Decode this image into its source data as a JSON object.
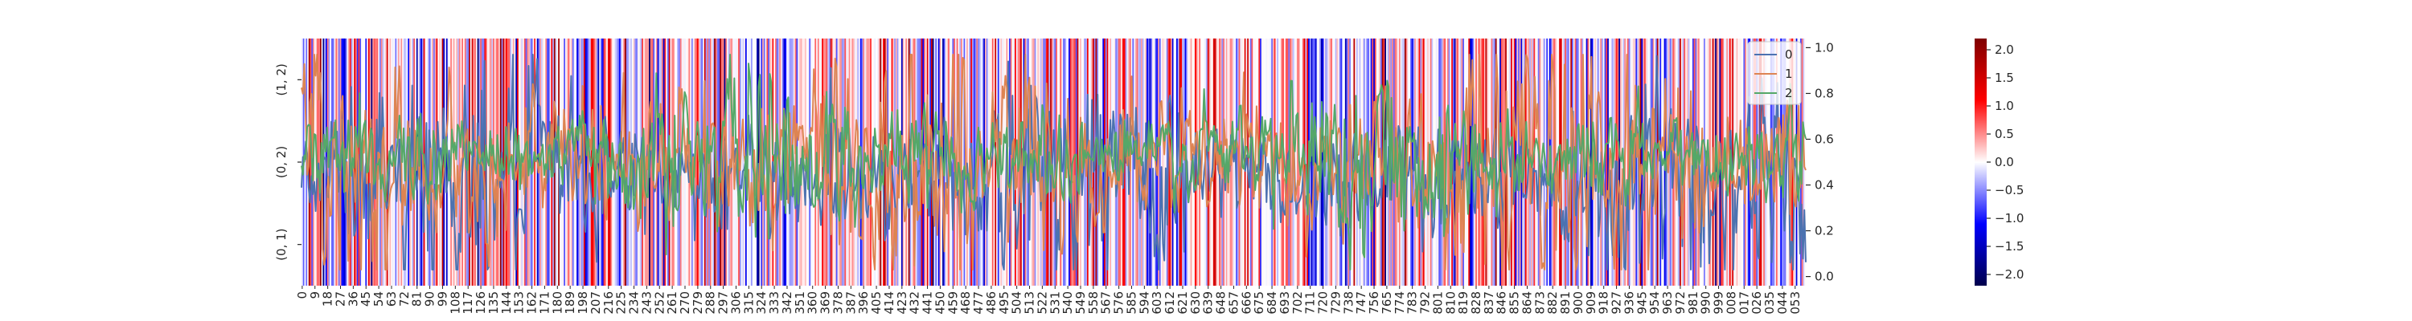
{
  "chart_data": {
    "type": "heatmap",
    "description_free": true,
    "heatmap": {
      "row_labels": [
        "(1, 2)",
        "(0, 2)",
        "(0, 1)"
      ],
      "x_tick_step": 9,
      "x_tick_start": 0,
      "x_tick_last": 1053,
      "n_columns": 1061,
      "colorbar": {
        "ticks": [
          -2.0,
          -1.5,
          -1.0,
          -0.5,
          0.0,
          0.5,
          1.0,
          1.5,
          2.0
        ],
        "tick_labels": [
          "−2.0",
          "−1.5",
          "−1.0",
          "−0.5",
          "0.0",
          "0.5",
          "1.0",
          "1.5",
          "2.0"
        ],
        "vmin": -2.2,
        "vmax": 2.2,
        "colormap": "seismic",
        "low_color": "#00004c",
        "mid_color": "#ffffff",
        "high_color": "#7f0000"
      }
    },
    "line_overlay": {
      "type": "line",
      "y_axis": "right",
      "ylim": [
        -0.04,
        1.04
      ],
      "yticks": [
        0.0,
        0.2,
        0.4,
        0.6,
        0.8,
        1.0
      ],
      "ytick_labels": [
        "0.0",
        "0.2",
        "0.4",
        "0.6",
        "0.8",
        "1.0"
      ],
      "x_range": [
        0,
        1060
      ],
      "legend_placement": "top-right",
      "series": [
        {
          "name": "0",
          "color": "#4c72b0",
          "mean": 0.44,
          "amplitude": 0.16
        },
        {
          "name": "1",
          "color": "#dd8452",
          "mean": 0.5,
          "amplitude": 0.18
        },
        {
          "name": "2",
          "color": "#55a868",
          "mean": 0.53,
          "amplitude": 0.12
        }
      ]
    }
  }
}
